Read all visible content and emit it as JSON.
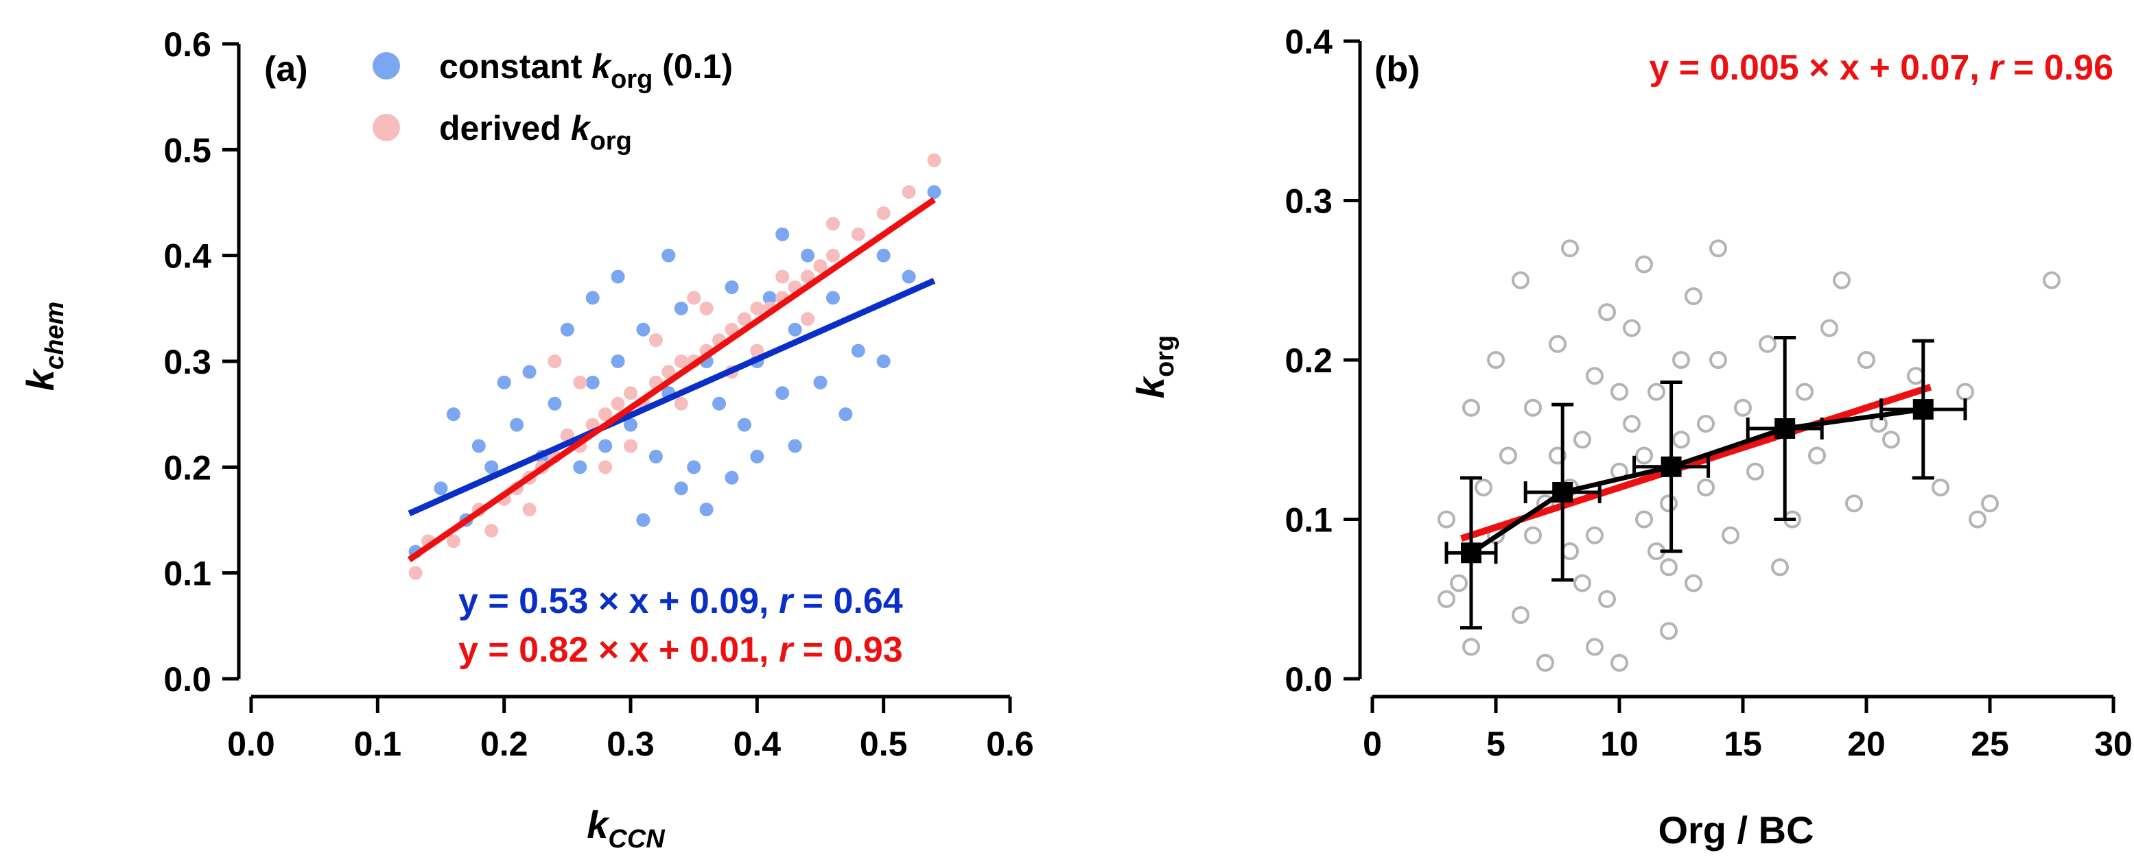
{
  "chart_data": [
    {
      "type": "scatter",
      "panel_label": "(a)",
      "xlabel": "k",
      "xlabel_sub": "CCN",
      "ylabel": "k",
      "ylabel_sub": "chem",
      "xlim": [
        0.0,
        0.6
      ],
      "ylim": [
        0.0,
        0.6
      ],
      "xticks": [
        "0.0",
        "0.1",
        "0.2",
        "0.3",
        "0.4",
        "0.5",
        "0.6"
      ],
      "yticks": [
        "0.0",
        "0.1",
        "0.2",
        "0.3",
        "0.4",
        "0.5",
        "0.6"
      ],
      "legend_position": "top-left",
      "series": [
        {
          "name": "constant korg (0.1)",
          "legend_parts": [
            "constant ",
            "k",
            "org",
            " (0.1)"
          ],
          "color": "#7aa6f2",
          "x_range": [
            0.125,
            0.54
          ],
          "fit": {
            "slope": 0.53,
            "intercept": 0.09
          },
          "fit_color": "#0a2fc8",
          "equation_parts": [
            "y = 0.53 × x + 0.09, ",
            "r",
            " = 0.64"
          ],
          "points": [
            [
              0.13,
              0.12
            ],
            [
              0.15,
              0.18
            ],
            [
              0.17,
              0.15
            ],
            [
              0.18,
              0.22
            ],
            [
              0.19,
              0.2
            ],
            [
              0.2,
              0.17
            ],
            [
              0.21,
              0.24
            ],
            [
              0.22,
              0.19
            ],
            [
              0.23,
              0.21
            ],
            [
              0.24,
              0.26
            ],
            [
              0.25,
              0.23
            ],
            [
              0.26,
              0.2
            ],
            [
              0.27,
              0.28
            ],
            [
              0.28,
              0.22
            ],
            [
              0.29,
              0.3
            ],
            [
              0.3,
              0.24
            ],
            [
              0.31,
              0.33
            ],
            [
              0.32,
              0.21
            ],
            [
              0.33,
              0.27
            ],
            [
              0.34,
              0.35
            ],
            [
              0.35,
              0.2
            ],
            [
              0.36,
              0.3
            ],
            [
              0.37,
              0.26
            ],
            [
              0.38,
              0.37
            ],
            [
              0.39,
              0.24
            ],
            [
              0.4,
              0.3
            ],
            [
              0.41,
              0.36
            ],
            [
              0.42,
              0.27
            ],
            [
              0.43,
              0.33
            ],
            [
              0.44,
              0.4
            ],
            [
              0.45,
              0.28
            ],
            [
              0.46,
              0.36
            ],
            [
              0.48,
              0.31
            ],
            [
              0.5,
              0.4
            ],
            [
              0.52,
              0.38
            ],
            [
              0.54,
              0.46
            ],
            [
              0.25,
              0.33
            ],
            [
              0.27,
              0.36
            ],
            [
              0.31,
              0.15
            ],
            [
              0.34,
              0.18
            ],
            [
              0.36,
              0.16
            ],
            [
              0.4,
              0.21
            ],
            [
              0.43,
              0.22
            ],
            [
              0.47,
              0.25
            ],
            [
              0.29,
              0.38
            ],
            [
              0.33,
              0.4
            ],
            [
              0.22,
              0.29
            ],
            [
              0.16,
              0.25
            ],
            [
              0.2,
              0.28
            ],
            [
              0.38,
              0.19
            ],
            [
              0.42,
              0.42
            ],
            [
              0.5,
              0.3
            ]
          ]
        },
        {
          "name": "derived korg",
          "legend_parts": [
            "derived ",
            "k",
            "org"
          ],
          "color": "#f7bcbc",
          "x_range": [
            0.125,
            0.54
          ],
          "fit": {
            "slope": 0.82,
            "intercept": 0.01
          },
          "fit_color": "#ee1010",
          "equation_parts": [
            "y = 0.82 × x + 0.01, ",
            "r",
            " = 0.93"
          ],
          "points": [
            [
              0.13,
              0.1
            ],
            [
              0.14,
              0.13
            ],
            [
              0.16,
              0.13
            ],
            [
              0.18,
              0.16
            ],
            [
              0.2,
              0.17
            ],
            [
              0.21,
              0.18
            ],
            [
              0.22,
              0.19
            ],
            [
              0.23,
              0.2
            ],
            [
              0.24,
              0.21
            ],
            [
              0.25,
              0.23
            ],
            [
              0.26,
              0.22
            ],
            [
              0.27,
              0.24
            ],
            [
              0.28,
              0.25
            ],
            [
              0.29,
              0.26
            ],
            [
              0.3,
              0.27
            ],
            [
              0.31,
              0.26
            ],
            [
              0.32,
              0.28
            ],
            [
              0.33,
              0.29
            ],
            [
              0.34,
              0.3
            ],
            [
              0.35,
              0.3
            ],
            [
              0.36,
              0.31
            ],
            [
              0.37,
              0.32
            ],
            [
              0.38,
              0.33
            ],
            [
              0.39,
              0.34
            ],
            [
              0.4,
              0.35
            ],
            [
              0.41,
              0.35
            ],
            [
              0.42,
              0.36
            ],
            [
              0.43,
              0.37
            ],
            [
              0.44,
              0.38
            ],
            [
              0.45,
              0.39
            ],
            [
              0.46,
              0.4
            ],
            [
              0.48,
              0.42
            ],
            [
              0.5,
              0.44
            ],
            [
              0.52,
              0.46
            ],
            [
              0.54,
              0.49
            ],
            [
              0.24,
              0.3
            ],
            [
              0.26,
              0.28
            ],
            [
              0.28,
              0.2
            ],
            [
              0.32,
              0.32
            ],
            [
              0.34,
              0.26
            ],
            [
              0.36,
              0.35
            ],
            [
              0.38,
              0.29
            ],
            [
              0.4,
              0.31
            ],
            [
              0.42,
              0.38
            ],
            [
              0.3,
              0.22
            ],
            [
              0.22,
              0.16
            ],
            [
              0.19,
              0.14
            ],
            [
              0.44,
              0.34
            ],
            [
              0.46,
              0.43
            ],
            [
              0.35,
              0.36
            ]
          ]
        }
      ]
    },
    {
      "type": "scatter",
      "panel_label": "(b)",
      "xlabel": "Org / BC",
      "ylabel": "k",
      "ylabel_sub": "org",
      "xlim": [
        0,
        30
      ],
      "ylim": [
        0.0,
        0.4
      ],
      "xticks": [
        "0",
        "5",
        "10",
        "15",
        "20",
        "25",
        "30"
      ],
      "yticks": [
        "0.0",
        "0.1",
        "0.2",
        "0.3",
        "0.4"
      ],
      "scatter_color": "#b4b4b4",
      "points": [
        [
          3,
          0.1
        ],
        [
          3.5,
          0.06
        ],
        [
          4,
          0.02
        ],
        [
          4.5,
          0.12
        ],
        [
          5,
          0.09
        ],
        [
          5.5,
          0.14
        ],
        [
          6,
          0.04
        ],
        [
          6.5,
          0.17
        ],
        [
          7,
          0.11
        ],
        [
          7.5,
          0.21
        ],
        [
          8,
          0.08
        ],
        [
          8.5,
          0.15
        ],
        [
          9,
          0.19
        ],
        [
          9.5,
          0.05
        ],
        [
          10,
          0.13
        ],
        [
          10.5,
          0.22
        ],
        [
          11,
          0.1
        ],
        [
          11.5,
          0.18
        ],
        [
          12,
          0.07
        ],
        [
          12.5,
          0.15
        ],
        [
          13,
          0.24
        ],
        [
          13.5,
          0.12
        ],
        [
          14,
          0.2
        ],
        [
          14.5,
          0.09
        ],
        [
          15,
          0.17
        ],
        [
          15.5,
          0.13
        ],
        [
          16,
          0.21
        ],
        [
          17,
          0.1
        ],
        [
          17.5,
          0.18
        ],
        [
          18,
          0.14
        ],
        [
          19,
          0.25
        ],
        [
          19.5,
          0.11
        ],
        [
          20,
          0.2
        ],
        [
          21,
          0.15
        ],
        [
          22,
          0.19
        ],
        [
          23,
          0.12
        ],
        [
          24,
          0.18
        ],
        [
          25,
          0.11
        ],
        [
          27.5,
          0.25
        ],
        [
          6,
          0.25
        ],
        [
          7,
          0.01
        ],
        [
          8,
          0.27
        ],
        [
          9,
          0.02
        ],
        [
          10,
          0.01
        ],
        [
          11,
          0.26
        ],
        [
          12,
          0.03
        ],
        [
          13,
          0.06
        ],
        [
          14,
          0.27
        ],
        [
          6.5,
          0.09
        ],
        [
          7.5,
          0.14
        ],
        [
          8.5,
          0.06
        ],
        [
          9.5,
          0.23
        ],
        [
          10.5,
          0.16
        ],
        [
          11.5,
          0.08
        ],
        [
          12.5,
          0.2
        ],
        [
          13.5,
          0.16
        ],
        [
          4,
          0.17
        ],
        [
          5,
          0.2
        ],
        [
          3,
          0.05
        ],
        [
          16.5,
          0.07
        ],
        [
          18.5,
          0.22
        ],
        [
          20.5,
          0.16
        ],
        [
          24.5,
          0.1
        ],
        [
          8,
          0.12
        ],
        [
          9,
          0.09
        ],
        [
          10,
          0.18
        ],
        [
          11,
          0.14
        ],
        [
          12,
          0.11
        ]
      ],
      "binned": {
        "color": "#000000",
        "points": [
          {
            "x": 4.0,
            "y": 0.079,
            "xerr": 1.0,
            "yerr": 0.047
          },
          {
            "x": 7.7,
            "y": 0.117,
            "xerr": 1.5,
            "yerr": 0.055
          },
          {
            "x": 12.1,
            "y": 0.133,
            "xerr": 1.5,
            "yerr": 0.053
          },
          {
            "x": 16.7,
            "y": 0.157,
            "xerr": 1.5,
            "yerr": 0.057
          },
          {
            "x": 22.3,
            "y": 0.169,
            "xerr": 1.7,
            "yerr": 0.043
          }
        ]
      },
      "fit": {
        "slope": 0.005,
        "intercept": 0.07,
        "x_range": [
          3.6,
          22.6
        ]
      },
      "fit_color": "#ee1010",
      "equation_parts": [
        "y = 0.005 × x + 0.07, ",
        "r",
        " = 0.96"
      ]
    }
  ]
}
